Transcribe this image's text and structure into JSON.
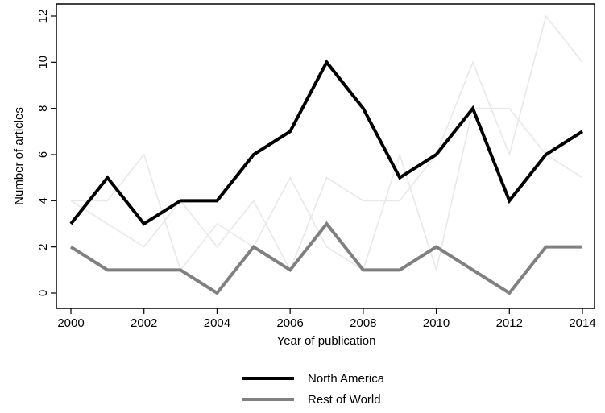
{
  "chart_data": {
    "type": "line",
    "xlabel": "Year of publication",
    "ylabel": "Number of articles",
    "x": [
      2000,
      2001,
      2002,
      2003,
      2004,
      2005,
      2006,
      2007,
      2008,
      2009,
      2010,
      2011,
      2012,
      2013,
      2014
    ],
    "xlim": [
      2000,
      2014
    ],
    "ylim": [
      0,
      12
    ],
    "xticks": [
      "2000",
      "2002",
      "2004",
      "2006",
      "2008",
      "2010",
      "2012",
      "2014"
    ],
    "yticks": [
      "0",
      "2",
      "4",
      "6",
      "8",
      "10",
      "12"
    ],
    "grid": false,
    "legend_position": "bottom",
    "series": [
      {
        "name": "North America",
        "color": "#000000",
        "values": [
          3,
          5,
          3,
          4,
          4,
          6,
          7,
          10,
          8,
          5,
          6,
          8,
          4,
          6,
          7
        ]
      },
      {
        "name": "Rest of World",
        "color": "#808080",
        "values": [
          2,
          1,
          1,
          1,
          0,
          2,
          1,
          3,
          1,
          1,
          2,
          1,
          0,
          2,
          2
        ]
      }
    ],
    "background_series": [
      {
        "color": "#e8e8e8",
        "values": [
          4,
          3,
          2,
          4,
          2,
          4,
          1,
          5,
          4,
          4,
          6,
          10,
          6,
          12,
          10
        ]
      },
      {
        "color": "#e8e8e8",
        "values": [
          4,
          4,
          6,
          1,
          3,
          2,
          5,
          2,
          1,
          6,
          1,
          8,
          8,
          6,
          5
        ]
      }
    ]
  }
}
